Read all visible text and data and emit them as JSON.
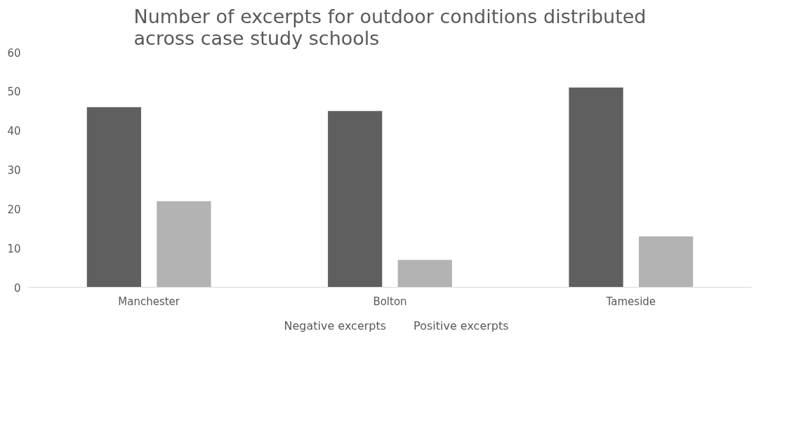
{
  "chart_data": {
    "type": "bar",
    "title": "Number of excerpts for outdoor conditions distributed across case study schools",
    "categories": [
      "Manchester",
      "Bolton",
      "Tameside"
    ],
    "series": [
      {
        "name": "Negative excerpts",
        "color": "#5f5f5f",
        "values": [
          46,
          45,
          51
        ]
      },
      {
        "name": "Positive excerpts",
        "color": "#b3b3b3",
        "values": [
          22,
          7,
          13
        ]
      }
    ],
    "ylim": [
      0,
      60
    ],
    "yticks": [
      0,
      10,
      20,
      30,
      40,
      50,
      60
    ],
    "grid": false,
    "legend": "bottom"
  }
}
